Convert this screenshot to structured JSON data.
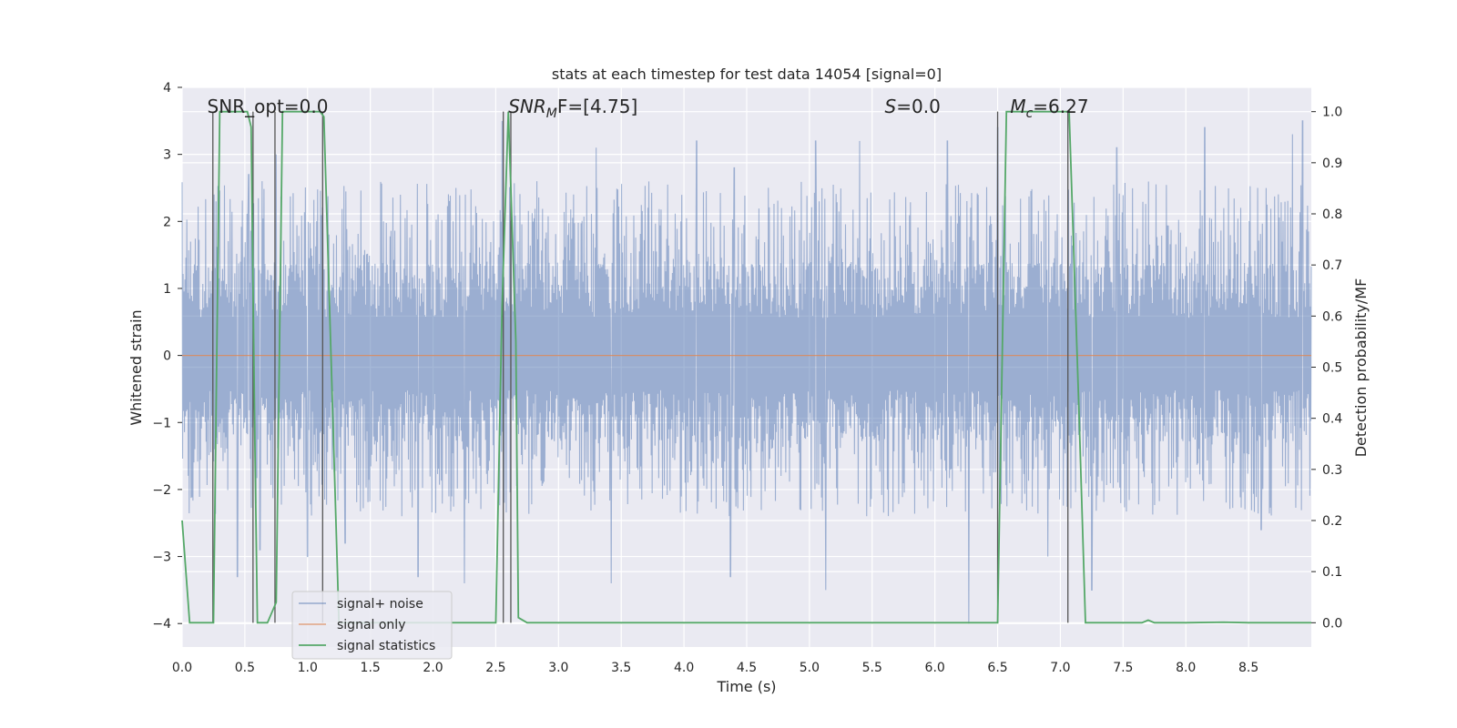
{
  "chart_data": {
    "type": "line",
    "title": "stats at each timestep for test data 14054 [signal=0]",
    "xlabel": "Time (s)",
    "ylabel": "Whitened strain",
    "y2label": "Detection probability/MF",
    "xlim": [
      0.0,
      9.0
    ],
    "ylim": [
      -4.35,
      4.0
    ],
    "y2lim": [
      -0.0475,
      1.0475
    ],
    "x_ticks": [
      0.0,
      0.5,
      1.0,
      1.5,
      2.0,
      2.5,
      3.0,
      3.5,
      4.0,
      4.5,
      5.0,
      5.5,
      6.0,
      6.5,
      7.0,
      7.5,
      8.0,
      8.5
    ],
    "x_tick_labels": [
      "0.0",
      "0.5",
      "1.0",
      "1.5",
      "2.0",
      "2.5",
      "3.0",
      "3.5",
      "4.0",
      "4.5",
      "5.0",
      "5.5",
      "6.0",
      "6.5",
      "7.0",
      "7.5",
      "8.0",
      "8.5"
    ],
    "y_ticks": [
      -4,
      -3,
      -2,
      -1,
      0,
      1,
      2,
      3,
      4
    ],
    "y_tick_labels": [
      "−4",
      "−3",
      "−2",
      "−1",
      "0",
      "1",
      "2",
      "3",
      "4"
    ],
    "y2_ticks": [
      0.0,
      0.1,
      0.2,
      0.3,
      0.4,
      0.5,
      0.6,
      0.7,
      0.8,
      0.9,
      1.0
    ],
    "y2_tick_labels": [
      "0.0",
      "0.1",
      "0.2",
      "0.3",
      "0.4",
      "0.5",
      "0.6",
      "0.7",
      "0.8",
      "0.9",
      "1.0"
    ],
    "grid": true,
    "legend_position": "lower-left",
    "series": [
      {
        "name": "signal+ noise",
        "color": "#4c72b0",
        "axis": "left",
        "description_values": "noise band, typical amplitude about ±1.7, peaks near +3.5 / −4",
        "envelope": {
          "core": [
            -1.4,
            1.4
          ],
          "outer": [
            -2.4,
            2.6
          ],
          "spikes_up": [
            [
              0.27,
              2.3
            ],
            [
              0.53,
              2.7
            ],
            [
              0.75,
              3.0
            ],
            [
              1.12,
              2.2
            ],
            [
              2.55,
              3.5
            ],
            [
              2.62,
              2.0
            ],
            [
              3.3,
              3.1
            ],
            [
              4.1,
              3.2
            ],
            [
              4.4,
              2.8
            ],
            [
              5.05,
              3.2
            ],
            [
              5.4,
              3.2
            ],
            [
              6.1,
              3.2
            ],
            [
              6.5,
              3.4
            ],
            [
              7.45,
              3.1
            ],
            [
              8.15,
              3.4
            ],
            [
              8.85,
              3.3
            ],
            [
              8.93,
              3.5
            ]
          ],
          "spikes_down": [
            [
              0.44,
              -3.3
            ],
            [
              0.62,
              -2.9
            ],
            [
              1.0,
              -3.0
            ],
            [
              1.3,
              -2.8
            ],
            [
              1.88,
              -3.3
            ],
            [
              2.25,
              -3.4
            ],
            [
              3.42,
              -3.4
            ],
            [
              4.37,
              -3.3
            ],
            [
              5.13,
              -3.5
            ],
            [
              6.27,
              -4.0
            ],
            [
              6.9,
              -3.0
            ],
            [
              7.25,
              -3.5
            ],
            [
              8.6,
              -2.6
            ]
          ]
        }
      },
      {
        "name": "signal only",
        "color": "#dd8452",
        "axis": "left",
        "x": [
          0.0,
          9.0
        ],
        "y": [
          0.0,
          0.0
        ]
      },
      {
        "name": "signal statistics",
        "color": "#55a868",
        "axis": "right",
        "x": [
          0.0,
          0.06,
          0.2,
          0.25,
          0.3,
          0.52,
          0.55,
          0.58,
          0.6,
          0.62,
          0.68,
          0.75,
          0.8,
          1.1,
          1.13,
          1.25,
          1.5,
          2.0,
          2.5,
          2.55,
          2.6,
          2.66,
          2.68,
          2.75,
          3.0,
          4.0,
          5.0,
          6.0,
          6.5,
          6.57,
          7.0,
          7.07,
          7.15,
          7.2,
          7.5,
          7.65,
          7.7,
          7.75,
          8.0,
          8.3,
          8.5,
          9.0
        ],
        "y": [
          0.2,
          0.0,
          0.0,
          0.0,
          1.0,
          1.0,
          0.97,
          0.35,
          0.0,
          0.0,
          0.0,
          0.04,
          1.0,
          1.0,
          0.99,
          0.0,
          0.0,
          0.0,
          0.0,
          0.62,
          1.0,
          0.55,
          0.01,
          0.0,
          0.0,
          0.0,
          0.0,
          0.0,
          0.0,
          1.0,
          1.0,
          1.0,
          0.4,
          0.0,
          0.0,
          0.0,
          0.005,
          0.0,
          0.0,
          0.001,
          0.0,
          0.0
        ]
      }
    ],
    "vlines": [
      {
        "x": 0.245,
        "y2_from": 0.0,
        "y2_to": 1.0
      },
      {
        "x": 0.565,
        "y2_from": 0.0,
        "y2_to": 1.0
      },
      {
        "x": 0.74,
        "y2_from": 0.0,
        "y2_to": 1.0
      },
      {
        "x": 1.12,
        "y2_from": 0.0,
        "y2_to": 1.0
      },
      {
        "x": 2.56,
        "y2_from": 0.0,
        "y2_to": 1.0
      },
      {
        "x": 2.62,
        "y2_from": 0.0,
        "y2_to": 1.0
      },
      {
        "x": 6.5,
        "y2_from": 0.0,
        "y2_to": 1.0
      },
      {
        "x": 7.06,
        "y2_from": 0.0,
        "y2_to": 1.0
      }
    ],
    "annotations": [
      {
        "text": "SNR_opt=0.0",
        "x": 0.2,
        "y2": 1.0
      },
      {
        "text": "SNR",
        "sub": "M",
        "after": "F=[4.75]",
        "italic_prefix": true,
        "x": 2.6,
        "y2": 1.0
      },
      {
        "text": "S",
        "after": "=0.0",
        "italic_prefix": true,
        "x": 5.6,
        "y2": 1.0
      },
      {
        "text": "M",
        "sub": "c",
        "after": "=6.27",
        "italic_prefix": true,
        "x": 6.6,
        "y2": 1.0
      }
    ]
  }
}
